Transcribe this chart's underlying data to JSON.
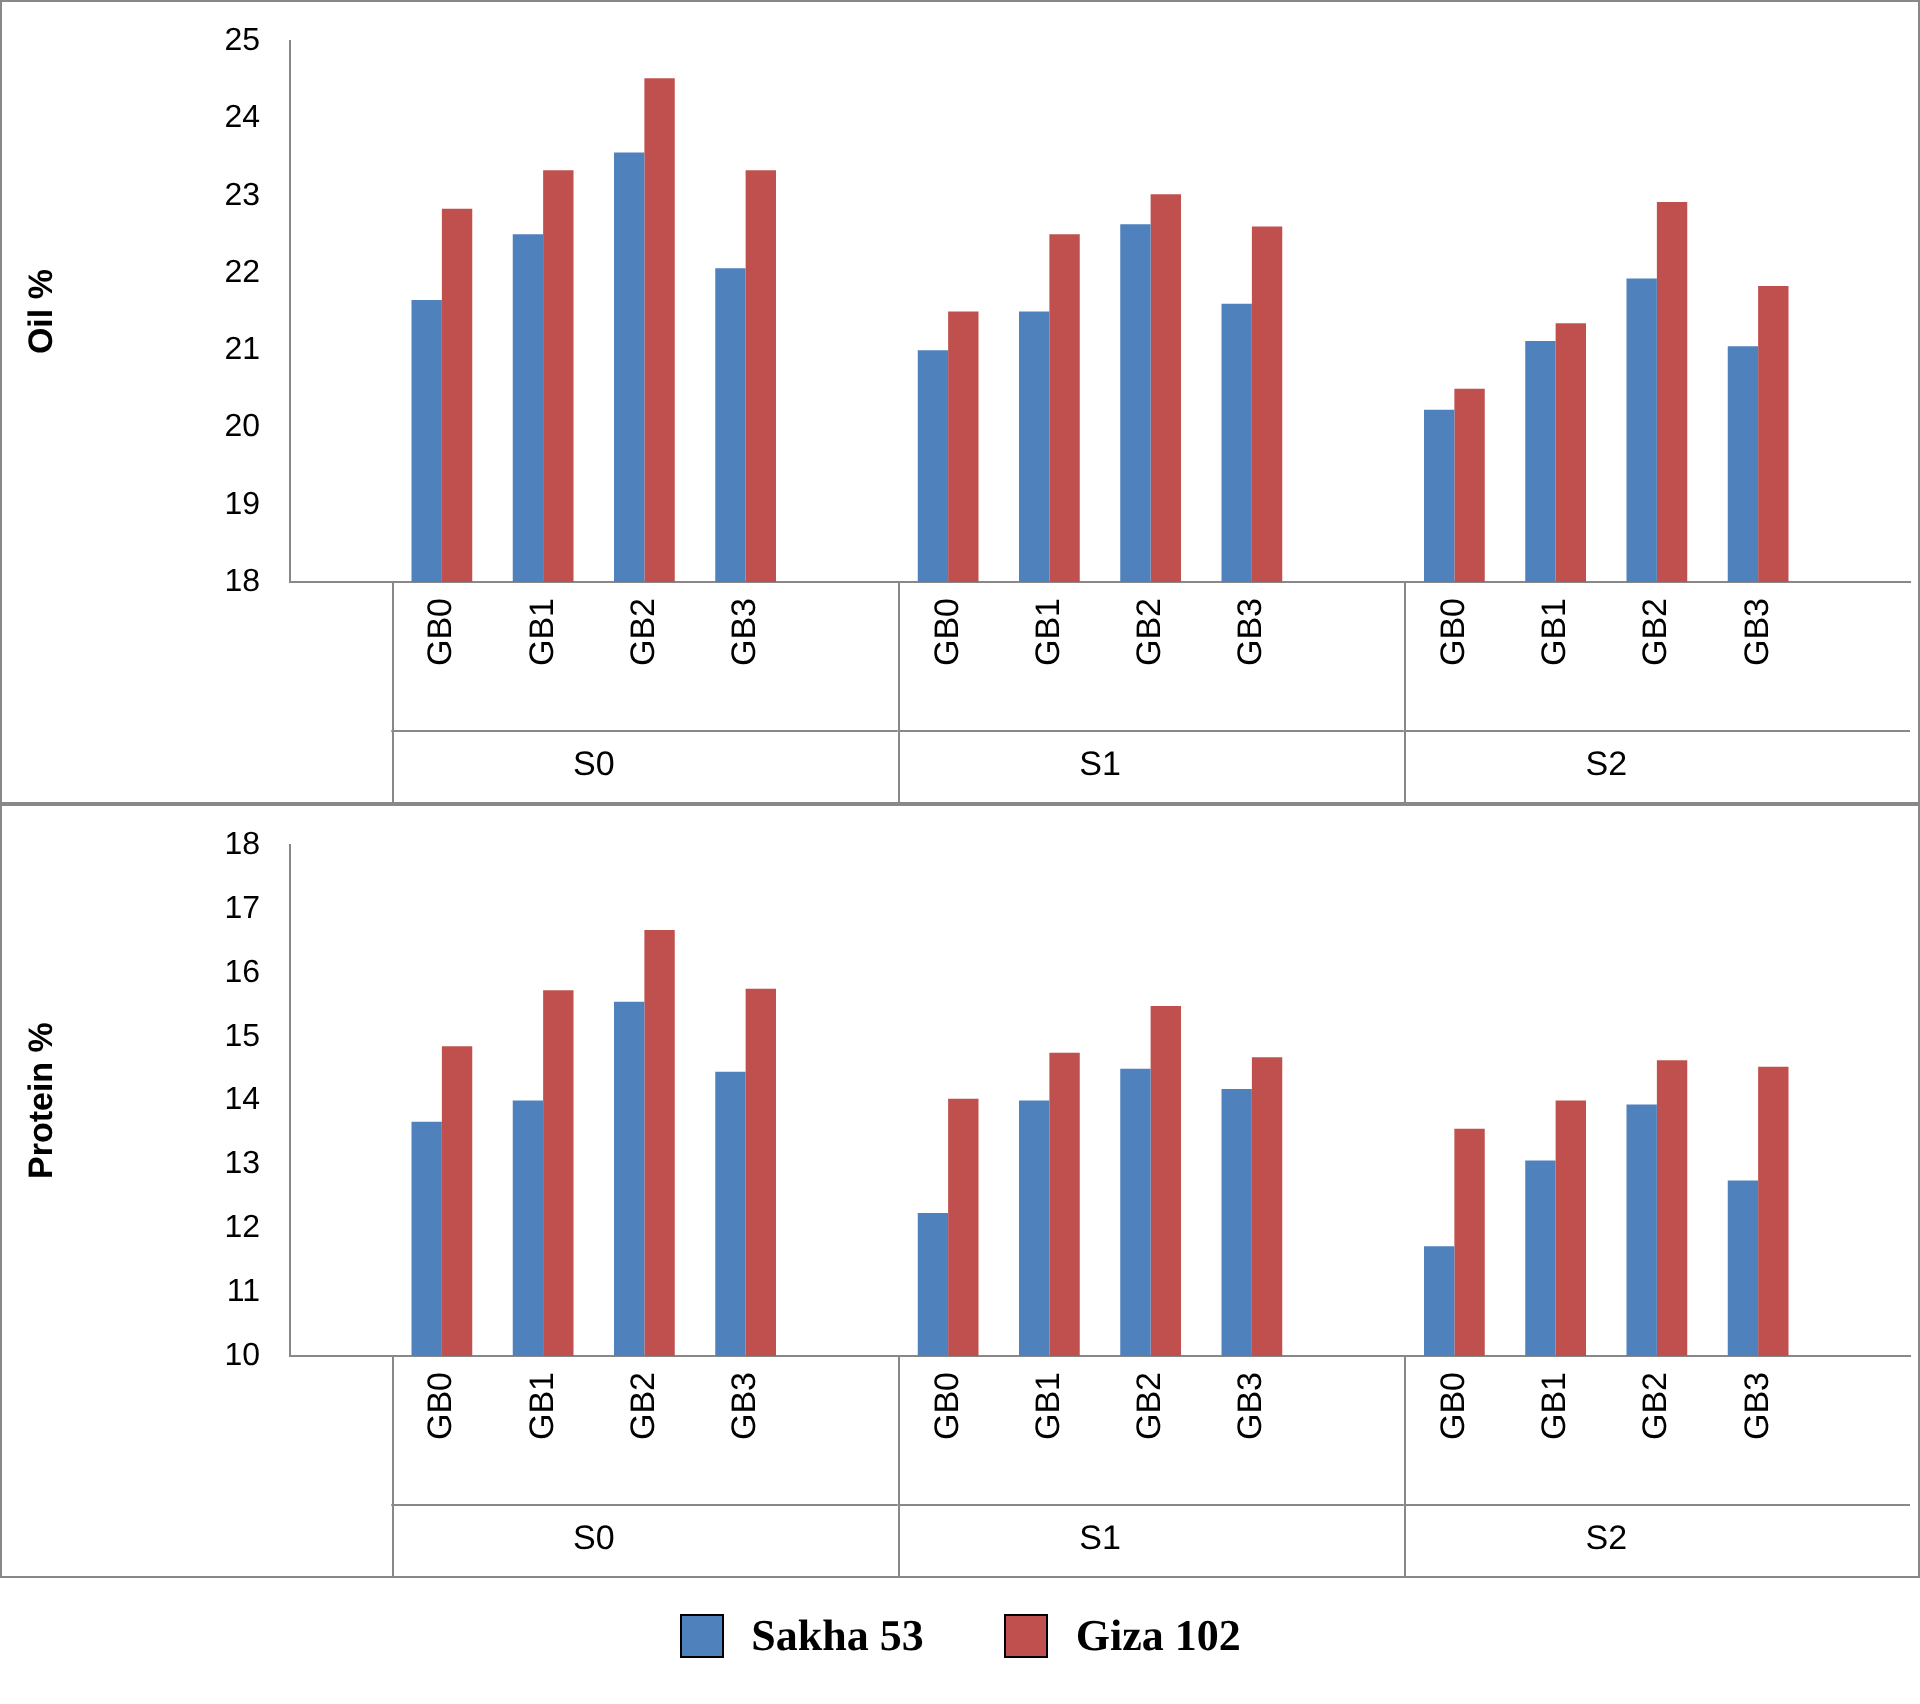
{
  "chart_data": [
    {
      "type": "bar",
      "ylabel": "Oil %",
      "categories": [
        "GB0",
        "GB1",
        "GB2",
        "GB3",
        "GB0",
        "GB1",
        "GB2",
        "GB3",
        "GB0",
        "GB1",
        "GB2",
        "GB3"
      ],
      "annotations": [
        "S0",
        "S1",
        "S2"
      ],
      "series": [
        {
          "name": "Sakha 53",
          "color": "#4f81bd",
          "values": [
            21.65,
            22.5,
            23.56,
            22.06,
            21.0,
            21.5,
            22.63,
            21.6,
            20.23,
            21.12,
            21.93,
            21.05
          ]
        },
        {
          "name": "Giza 102",
          "color": "#c0504d",
          "values": [
            22.83,
            23.33,
            24.52,
            23.33,
            21.5,
            22.5,
            23.02,
            22.6,
            20.5,
            21.35,
            22.92,
            21.83
          ]
        }
      ],
      "ylim": [
        18,
        25
      ],
      "yticks": [
        18,
        19,
        20,
        21,
        22,
        23,
        24,
        25
      ],
      "grid": false,
      "legend": "bottom"
    },
    {
      "type": "bar",
      "ylabel": "Protein %",
      "categories": [
        "GB0",
        "GB1",
        "GB2",
        "GB3",
        "GB0",
        "GB1",
        "GB2",
        "GB3",
        "GB0",
        "GB1",
        "GB2",
        "GB3"
      ],
      "annotations": [
        "S0",
        "S1",
        "S2"
      ],
      "series": [
        {
          "name": "Sakha 53",
          "color": "#4f81bd",
          "values": [
            13.67,
            14.0,
            15.55,
            14.45,
            12.24,
            14.0,
            14.5,
            14.18,
            11.72,
            13.06,
            13.94,
            12.75
          ]
        },
        {
          "name": "Giza 102",
          "color": "#c0504d",
          "values": [
            14.85,
            15.73,
            16.67,
            15.75,
            14.03,
            14.75,
            15.48,
            14.68,
            13.56,
            14.0,
            14.63,
            14.53
          ]
        }
      ],
      "ylim": [
        10,
        18
      ],
      "yticks": [
        10,
        11,
        12,
        13,
        14,
        15,
        16,
        17,
        18
      ],
      "grid": false,
      "legend": "bottom"
    }
  ]
}
